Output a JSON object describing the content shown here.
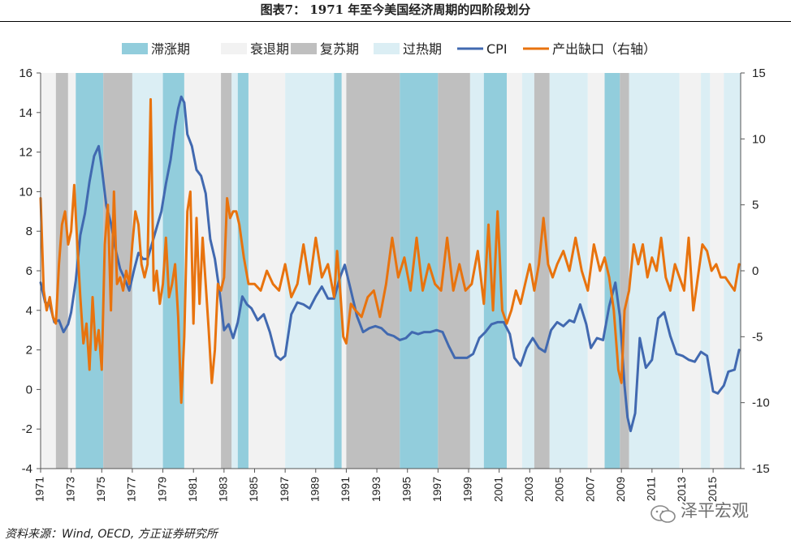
{
  "figure": {
    "title": "图表7： 1971 年至今美国经济周期的四阶段划分",
    "source": "资料来源：Wind, OECD, 方正证券研究所",
    "watermark": "泽平宏观"
  },
  "colors": {
    "stagflation": "#92cddc",
    "recession": "#f2f2f2",
    "recovery": "#bfbfbf",
    "overheat": "#dbeef4",
    "cpi": "#4169b0",
    "output_gap": "#e8730e",
    "axis": "#555555"
  },
  "chart_data": {
    "type": "line",
    "legend": [
      {
        "key": "stagflation",
        "label": "滞涨期",
        "kind": "band"
      },
      {
        "key": "recession",
        "label": "衰退期",
        "kind": "band"
      },
      {
        "key": "recovery",
        "label": "复苏期",
        "kind": "band"
      },
      {
        "key": "overheat",
        "label": "过热期",
        "kind": "band"
      },
      {
        "key": "cpi",
        "label": "CPI",
        "kind": "line"
      },
      {
        "key": "output_gap",
        "label": "产出缺口（右轴）",
        "kind": "line"
      }
    ],
    "legend_position": "top",
    "x_range": [
      1971.0,
      2016.8
    ],
    "x_ticks": [
      "1971",
      "1973",
      "1975",
      "1977",
      "1979",
      "1981",
      "1983",
      "1985",
      "1987",
      "1989",
      "1991",
      "1993",
      "1995",
      "1997",
      "1999",
      "2001",
      "2003",
      "2005",
      "2007",
      "2009",
      "2011",
      "2013",
      "2015"
    ],
    "y_left": {
      "range": [
        -4,
        16
      ],
      "ticks": [
        "-4",
        "-2",
        "0",
        "2",
        "4",
        "6",
        "8",
        "10",
        "12",
        "14",
        "16"
      ]
    },
    "y_right": {
      "range": [
        -15,
        15
      ],
      "ticks": [
        "-15",
        "-10",
        "-5",
        "0",
        "5",
        "10",
        "15"
      ]
    },
    "grid": false,
    "phases": [
      {
        "phase": "recession",
        "start": 1971.0,
        "end": 1972.0
      },
      {
        "phase": "recovery",
        "start": 1972.0,
        "end": 1972.8
      },
      {
        "phase": "recession",
        "start": 1972.8,
        "end": 1973.3
      },
      {
        "phase": "stagflation",
        "start": 1973.3,
        "end": 1975.1
      },
      {
        "phase": "recovery",
        "start": 1975.1,
        "end": 1977.0
      },
      {
        "phase": "overheat",
        "start": 1977.0,
        "end": 1979.0
      },
      {
        "phase": "stagflation",
        "start": 1979.0,
        "end": 1980.4
      },
      {
        "phase": "recession",
        "start": 1980.4,
        "end": 1982.8
      },
      {
        "phase": "recovery",
        "start": 1982.8,
        "end": 1983.5
      },
      {
        "phase": "overheat",
        "start": 1983.5,
        "end": 1983.9
      },
      {
        "phase": "stagflation",
        "start": 1983.9,
        "end": 1984.6
      },
      {
        "phase": "recession",
        "start": 1984.6,
        "end": 1987.0
      },
      {
        "phase": "overheat",
        "start": 1987.0,
        "end": 1990.2
      },
      {
        "phase": "stagflation",
        "start": 1990.2,
        "end": 1990.7
      },
      {
        "phase": "recession",
        "start": 1990.7,
        "end": 1991.0
      },
      {
        "phase": "recovery",
        "start": 1991.0,
        "end": 1994.5
      },
      {
        "phase": "stagflation",
        "start": 1994.5,
        "end": 1997.0
      },
      {
        "phase": "recovery",
        "start": 1997.0,
        "end": 1999.1
      },
      {
        "phase": "overheat",
        "start": 1999.1,
        "end": 2000.0
      },
      {
        "phase": "stagflation",
        "start": 2000.0,
        "end": 2001.5
      },
      {
        "phase": "recession",
        "start": 2001.5,
        "end": 2002.5
      },
      {
        "phase": "overheat",
        "start": 2002.5,
        "end": 2003.3
      },
      {
        "phase": "recovery",
        "start": 2003.3,
        "end": 2004.3
      },
      {
        "phase": "overheat",
        "start": 2004.3,
        "end": 2006.8
      },
      {
        "phase": "recession",
        "start": 2006.8,
        "end": 2007.9
      },
      {
        "phase": "stagflation",
        "start": 2007.9,
        "end": 2008.9
      },
      {
        "phase": "recovery",
        "start": 2008.9,
        "end": 2009.5
      },
      {
        "phase": "overheat",
        "start": 2009.5,
        "end": 2012.8
      },
      {
        "phase": "recession",
        "start": 2012.8,
        "end": 2014.2
      },
      {
        "phase": "overheat",
        "start": 2014.2,
        "end": 2014.8
      },
      {
        "phase": "recession",
        "start": 2014.8,
        "end": 2015.7
      },
      {
        "phase": "overheat",
        "start": 2015.7,
        "end": 2016.8
      }
    ],
    "series": [
      {
        "name": "CPI",
        "axis": "left",
        "x": [
          1971.0,
          1971.3,
          1971.6,
          1971.9,
          1972.2,
          1972.5,
          1972.8,
          1973.0,
          1973.3,
          1973.6,
          1973.9,
          1974.2,
          1974.5,
          1974.8,
          1975.0,
          1975.3,
          1975.6,
          1975.9,
          1976.2,
          1976.5,
          1976.8,
          1977.1,
          1977.4,
          1977.7,
          1978.0,
          1978.3,
          1978.6,
          1978.9,
          1979.2,
          1979.5,
          1979.8,
          1980.0,
          1980.2,
          1980.4,
          1980.6,
          1980.9,
          1981.2,
          1981.5,
          1981.8,
          1982.1,
          1982.4,
          1982.7,
          1983.0,
          1983.3,
          1983.6,
          1983.9,
          1984.2,
          1984.5,
          1984.8,
          1985.2,
          1985.6,
          1986.0,
          1986.4,
          1986.7,
          1987.0,
          1987.4,
          1987.8,
          1988.2,
          1988.6,
          1989.0,
          1989.4,
          1989.8,
          1990.2,
          1990.6,
          1990.9,
          1991.3,
          1991.7,
          1992.1,
          1992.5,
          1992.9,
          1993.3,
          1993.7,
          1994.1,
          1994.5,
          1994.9,
          1995.3,
          1995.7,
          1996.1,
          1996.5,
          1996.9,
          1997.3,
          1997.7,
          1998.1,
          1998.5,
          1998.9,
          1999.3,
          1999.7,
          2000.1,
          2000.5,
          2000.9,
          2001.3,
          2001.7,
          2002.0,
          2002.4,
          2002.8,
          2003.2,
          2003.6,
          2004.0,
          2004.4,
          2004.8,
          2005.2,
          2005.6,
          2005.9,
          2006.3,
          2006.7,
          2007.0,
          2007.4,
          2007.8,
          2008.2,
          2008.6,
          2008.9,
          2009.2,
          2009.4,
          2009.6,
          2009.9,
          2010.2,
          2010.6,
          2011.0,
          2011.4,
          2011.8,
          2012.2,
          2012.6,
          2013.0,
          2013.4,
          2013.8,
          2014.2,
          2014.6,
          2015.0,
          2015.3,
          2015.7,
          2016.0,
          2016.4,
          2016.7
        ],
        "values": [
          5.4,
          4.4,
          4.3,
          3.4,
          3.5,
          2.9,
          3.3,
          3.9,
          5.5,
          7.8,
          8.9,
          10.5,
          11.8,
          12.3,
          11.2,
          9.3,
          8.4,
          7.1,
          6.1,
          5.6,
          5.0,
          6.0,
          6.9,
          6.6,
          6.6,
          7.4,
          8.2,
          9.0,
          10.4,
          11.6,
          13.3,
          14.2,
          14.8,
          14.5,
          12.9,
          12.3,
          11.1,
          10.8,
          9.9,
          7.6,
          6.6,
          5.0,
          3.0,
          3.3,
          2.6,
          3.4,
          4.7,
          4.3,
          4.1,
          3.5,
          3.8,
          2.9,
          1.7,
          1.5,
          1.7,
          3.8,
          4.4,
          4.3,
          4.1,
          4.7,
          5.2,
          4.6,
          4.6,
          5.7,
          6.3,
          5.0,
          3.7,
          2.9,
          3.1,
          3.2,
          3.1,
          2.8,
          2.7,
          2.5,
          2.6,
          2.9,
          2.8,
          2.9,
          2.9,
          3.0,
          2.9,
          2.2,
          1.6,
          1.6,
          1.6,
          1.8,
          2.6,
          2.9,
          3.3,
          3.4,
          3.4,
          2.8,
          1.6,
          1.2,
          2.1,
          2.6,
          2.1,
          1.9,
          3.0,
          3.4,
          3.2,
          3.5,
          3.4,
          4.3,
          3.3,
          2.1,
          2.6,
          2.5,
          4.2,
          5.4,
          3.7,
          0.2,
          -1.4,
          -2.1,
          -1.2,
          2.6,
          1.1,
          1.5,
          3.6,
          3.9,
          2.7,
          1.8,
          1.7,
          1.5,
          1.4,
          1.9,
          1.7,
          -0.1,
          -0.2,
          0.2,
          0.9,
          1.0,
          2.0
        ]
      },
      {
        "name": "产出缺口（右轴）",
        "axis": "right",
        "x": [
          1971.0,
          1971.2,
          1971.4,
          1971.6,
          1971.8,
          1972.0,
          1972.2,
          1972.4,
          1972.6,
          1972.8,
          1973.0,
          1973.2,
          1973.4,
          1973.6,
          1973.8,
          1974.0,
          1974.2,
          1974.4,
          1974.6,
          1974.8,
          1975.0,
          1975.2,
          1975.4,
          1975.6,
          1975.8,
          1976.0,
          1976.2,
          1976.4,
          1976.6,
          1976.8,
          1977.0,
          1977.2,
          1977.4,
          1977.6,
          1977.8,
          1978.0,
          1978.2,
          1978.4,
          1978.6,
          1978.8,
          1979.0,
          1979.2,
          1979.4,
          1979.6,
          1979.8,
          1980.0,
          1980.2,
          1980.4,
          1980.6,
          1980.8,
          1981.0,
          1981.2,
          1981.4,
          1981.6,
          1981.8,
          1982.0,
          1982.2,
          1982.4,
          1982.6,
          1982.8,
          1983.0,
          1983.2,
          1983.4,
          1983.6,
          1983.8,
          1984.0,
          1984.3,
          1984.6,
          1985.0,
          1985.4,
          1985.8,
          1986.2,
          1986.6,
          1987.0,
          1987.4,
          1987.8,
          1988.2,
          1988.6,
          1989.0,
          1989.4,
          1989.8,
          1990.2,
          1990.4,
          1990.6,
          1990.8,
          1991.0,
          1991.3,
          1991.6,
          1992.0,
          1992.4,
          1992.8,
          1993.2,
          1993.6,
          1994.0,
          1994.4,
          1994.8,
          1995.2,
          1995.6,
          1996.0,
          1996.4,
          1996.8,
          1997.2,
          1997.6,
          1998.0,
          1998.4,
          1998.8,
          1999.2,
          1999.6,
          2000.0,
          2000.3,
          2000.6,
          2000.9,
          2001.2,
          2001.5,
          2001.8,
          2002.1,
          2002.4,
          2002.7,
          2003.0,
          2003.3,
          2003.6,
          2003.9,
          2004.2,
          2004.5,
          2004.8,
          2005.2,
          2005.6,
          2006.0,
          2006.4,
          2006.8,
          2007.2,
          2007.6,
          2007.9,
          2008.2,
          2008.5,
          2008.8,
          2009.0,
          2009.2,
          2009.5,
          2009.8,
          2010.1,
          2010.4,
          2010.7,
          2011.0,
          2011.3,
          2011.6,
          2011.9,
          2012.2,
          2012.5,
          2012.8,
          2013.1,
          2013.4,
          2013.7,
          2014.0,
          2014.3,
          2014.6,
          2014.9,
          2015.2,
          2015.5,
          2015.8,
          2016.1,
          2016.4,
          2016.7
        ],
        "values": [
          5.5,
          -1.5,
          -3.0,
          -2.0,
          -3.5,
          -4.0,
          0.5,
          3.5,
          4.5,
          2.0,
          3.0,
          6.5,
          2.0,
          -2.0,
          -5.5,
          -4.0,
          -7.5,
          -2.0,
          -6.0,
          -4.5,
          -7.5,
          2.0,
          5.0,
          -3.0,
          6.0,
          -1.0,
          -0.5,
          -1.5,
          0.0,
          -1.0,
          2.0,
          4.5,
          3.5,
          0.5,
          -0.5,
          0.5,
          13.0,
          -1.5,
          0.0,
          -2.5,
          -1.0,
          2.5,
          -2.0,
          -1.0,
          0.5,
          -3.5,
          -10.0,
          -5.0,
          4.5,
          6.0,
          -4.0,
          4.0,
          -2.5,
          2.5,
          -1.0,
          -4.5,
          -8.5,
          -6.0,
          -1.0,
          -1.5,
          -0.5,
          5.5,
          4.0,
          4.5,
          4.5,
          3.5,
          1.0,
          -1.0,
          -1.0,
          -1.5,
          0.0,
          -1.0,
          -1.5,
          0.5,
          -2.0,
          -1.0,
          2.0,
          -1.0,
          2.5,
          -0.5,
          0.5,
          -2.0,
          1.5,
          -1.5,
          -5.0,
          -5.5,
          -2.5,
          -3.0,
          -3.5,
          -2.0,
          -1.5,
          -3.5,
          -1.0,
          2.5,
          -0.5,
          1.0,
          -1.5,
          2.5,
          -1.5,
          0.5,
          -1.0,
          -1.5,
          2.5,
          -1.5,
          0.5,
          -1.5,
          -1.0,
          1.5,
          -2.5,
          3.5,
          -3.0,
          4.5,
          -3.0,
          -4.0,
          -3.0,
          -1.5,
          -2.5,
          -1.0,
          0.5,
          -1.5,
          0.5,
          4.0,
          0.5,
          -0.5,
          0.5,
          1.5,
          0.0,
          2.5,
          0.0,
          -1.5,
          2.0,
          0.0,
          1.0,
          -0.5,
          -3.0,
          -7.5,
          -8.5,
          -3.0,
          -1.5,
          2.0,
          0.5,
          2.0,
          -0.5,
          1.0,
          0.0,
          2.5,
          -0.5,
          -1.5,
          0.5,
          -0.5,
          -1.5,
          2.5,
          -3.0,
          -0.5,
          2.0,
          1.5,
          0.0,
          0.5,
          -0.5,
          -0.5,
          -1.0,
          -1.5,
          0.5
        ]
      }
    ]
  }
}
